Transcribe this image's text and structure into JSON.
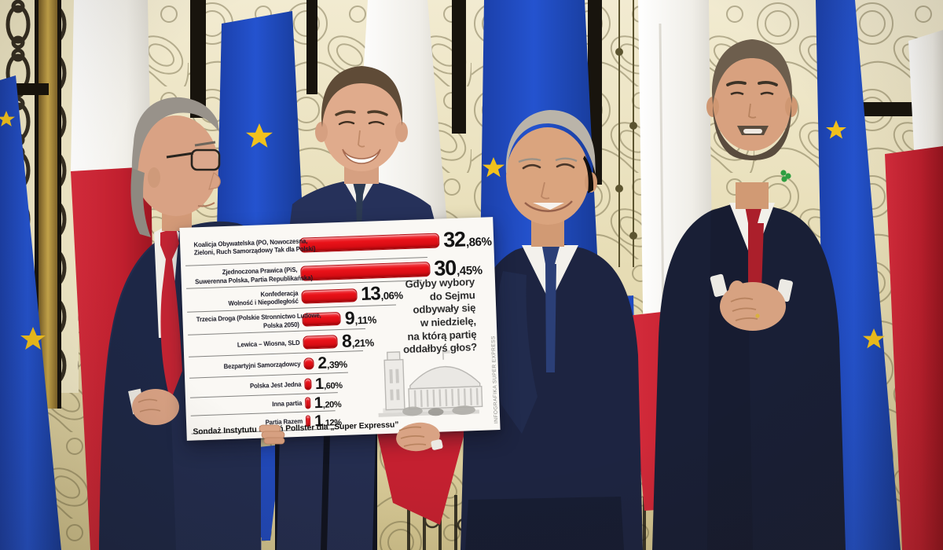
{
  "overlay": {
    "question_lines": [
      "Gdyby wybory",
      "do Sejmu",
      "odbywały się",
      "w niedzielę,",
      "na którą partię",
      "oddałbyś głos?"
    ],
    "source": "Sondaż Instytutu Badań Pollster dla „Super Expressu”",
    "credit": "INFOGRAFIKA SUPER EXPRESS",
    "colors": {
      "bar": "#e30b13",
      "bar_border": "#b20a11",
      "card": "#faf8f4",
      "label_text": "#1c1c28",
      "value_text": "#141414",
      "question_text": "#2d2d2d",
      "separator": "#6e6e6c",
      "building_gray": "#b5b3af"
    }
  },
  "chart_data": {
    "type": "bar",
    "orientation": "horizontal",
    "title": "Gdyby wybory do Sejmu odbywały się w niedzielę, na którą partię oddałbyś głos?",
    "categories": [
      "Koalicja Obywatelska (PO, Nowoczesna, Zieloni, Ruch Samorządowy Tak dla Polski)",
      "Zjednoczona Prawica (PiS, Suwerenna Polska, Partia Republikańska)",
      "Konfederacja Wolność i Niepodległość",
      "Trzecia Droga (Polskie Stronnictwo Ludowe, Polska 2050)",
      "Lewica – Wiosna, SLD",
      "Bezpartyjni Samorządowcy",
      "Polska Jest Jedna",
      "Inna partia",
      "Partia Razem"
    ],
    "label_lines": [
      [
        "Koalicja Obywatelska (PO, Nowoczesna,",
        "Zieloni, Ruch Samorządowy Tak dla Polski)"
      ],
      [
        "Zjednoczona Prawica (PiS,",
        "Suwerenna Polska, Partia Republikańska)"
      ],
      [
        "Konfederacja",
        "Wolność i Niepodległość"
      ],
      [
        "Trzecia Droga (Polskie Stronnictwo Ludowe,",
        "Polska 2050)"
      ],
      [
        "Lewica – Wiosna, SLD"
      ],
      [
        "Bezpartyjni Samorządowcy"
      ],
      [
        "Polska Jest Jedna"
      ],
      [
        "Inna partia"
      ],
      [
        "Partia Razem"
      ]
    ],
    "values": [
      32.86,
      30.45,
      13.06,
      9.11,
      8.21,
      2.39,
      1.6,
      1.2,
      1.12
    ],
    "value_labels": [
      "32,86%",
      "30,45%",
      "13,06%",
      "9,11%",
      "8,21%",
      "2,39%",
      "1,60%",
      "1,20%",
      "1,12%"
    ],
    "xlim": [
      0,
      33
    ],
    "grid": false,
    "legend": "none",
    "source": "Sondaż Instytutu Badań Pollster dla „Super Expressu”"
  },
  "scene_colors": {
    "eu_blue": "#2150c8",
    "eu_star_gold": "#f2c11c",
    "poland_red": "#c32331",
    "poland_white": "#f3f1ed",
    "wall_gold": "#e6dcb4",
    "iron_black": "#1c160d",
    "suit_navy": "#1d2441",
    "tie_red": "#c32433",
    "tie_navy": "#2b3f77",
    "skin": "#d9a284"
  }
}
